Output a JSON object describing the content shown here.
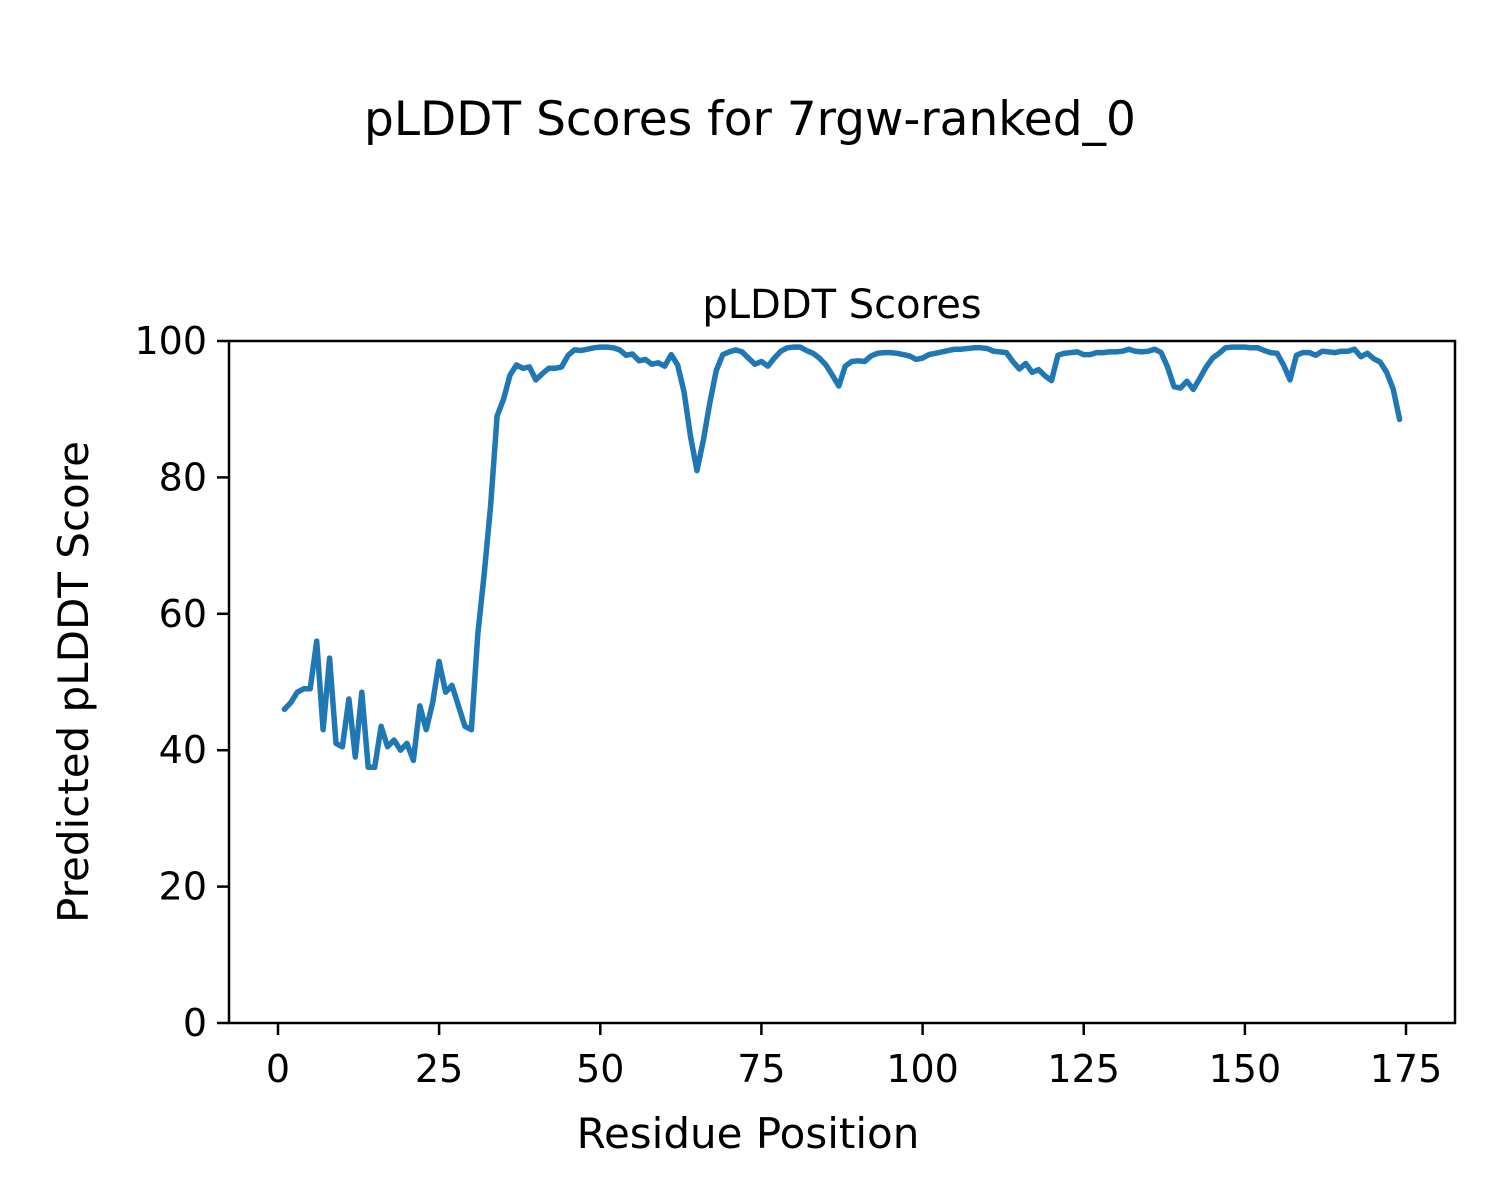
{
  "figure": {
    "suptitle": "pLDDT Scores for 7rgw-ranked_0",
    "background": "#ffffff"
  },
  "chart_data": {
    "type": "line",
    "title": "pLDDT Scores",
    "xlabel": "Residue Position",
    "ylabel": "Predicted pLDDT Score",
    "xlim": [
      -7.6,
      182.6
    ],
    "ylim": [
      0,
      100
    ],
    "xticks": [
      0,
      25,
      50,
      75,
      100,
      125,
      150,
      175
    ],
    "yticks": [
      0,
      20,
      40,
      60,
      80,
      100
    ],
    "grid": false,
    "legend": null,
    "line_color": "#1f77b4",
    "spine_color": "#000000",
    "series": [
      {
        "name": "pLDDT",
        "x_start": 1,
        "values": [
          46,
          47,
          48.5,
          49,
          49,
          56,
          43,
          53.5,
          41,
          40.5,
          47.5,
          39,
          48.5,
          37.5,
          37.5,
          43.5,
          40.5,
          41.5,
          40,
          41,
          38.5,
          46.5,
          43,
          47,
          53,
          48.5,
          49.5,
          46.5,
          43.5,
          43,
          57,
          66,
          76,
          89,
          91.5,
          95,
          96.5,
          96,
          96.2,
          94.3,
          95.2,
          96,
          96,
          96.2,
          97.9,
          98.7,
          98.6,
          98.8,
          99,
          99.1,
          99.1,
          99,
          98.7,
          97.9,
          98.1,
          97.1,
          97.3,
          96.6,
          96.8,
          96.3,
          98,
          96.5,
          92.5,
          86,
          81,
          85.5,
          91,
          95.7,
          98,
          98.4,
          98.7,
          98.4,
          97.5,
          96.6,
          97,
          96.3,
          97.5,
          98.5,
          99,
          99.1,
          99.1,
          98.6,
          98.2,
          97.5,
          96.5,
          95,
          93.4,
          96.3,
          97,
          97.1,
          97,
          97.8,
          98.2,
          98.3,
          98.3,
          98.2,
          98,
          97.8,
          97.3,
          97.5,
          98,
          98.2,
          98.4,
          98.6,
          98.8,
          98.8,
          98.9,
          99,
          99,
          98.9,
          98.5,
          98.4,
          98.3,
          97,
          95.9,
          96.7,
          95.4,
          95.8,
          94.9,
          94.2,
          97.9,
          98.2,
          98.3,
          98.4,
          98,
          98,
          98.3,
          98.3,
          98.4,
          98.4,
          98.5,
          98.8,
          98.5,
          98.4,
          98.5,
          98.8,
          98.3,
          96.2,
          93.3,
          93.1,
          94.1,
          92.9,
          94.5,
          96.2,
          97.5,
          98.2,
          99,
          99.1,
          99.1,
          99.1,
          99,
          99,
          98.6,
          98.3,
          98.2,
          96.5,
          94.3,
          97.9,
          98.3,
          98.3,
          97.9,
          98.5,
          98.4,
          98.3,
          98.5,
          98.5,
          98.8,
          97.7,
          98.2,
          97.4,
          96.9,
          95.4,
          93,
          88.5
        ]
      }
    ]
  }
}
